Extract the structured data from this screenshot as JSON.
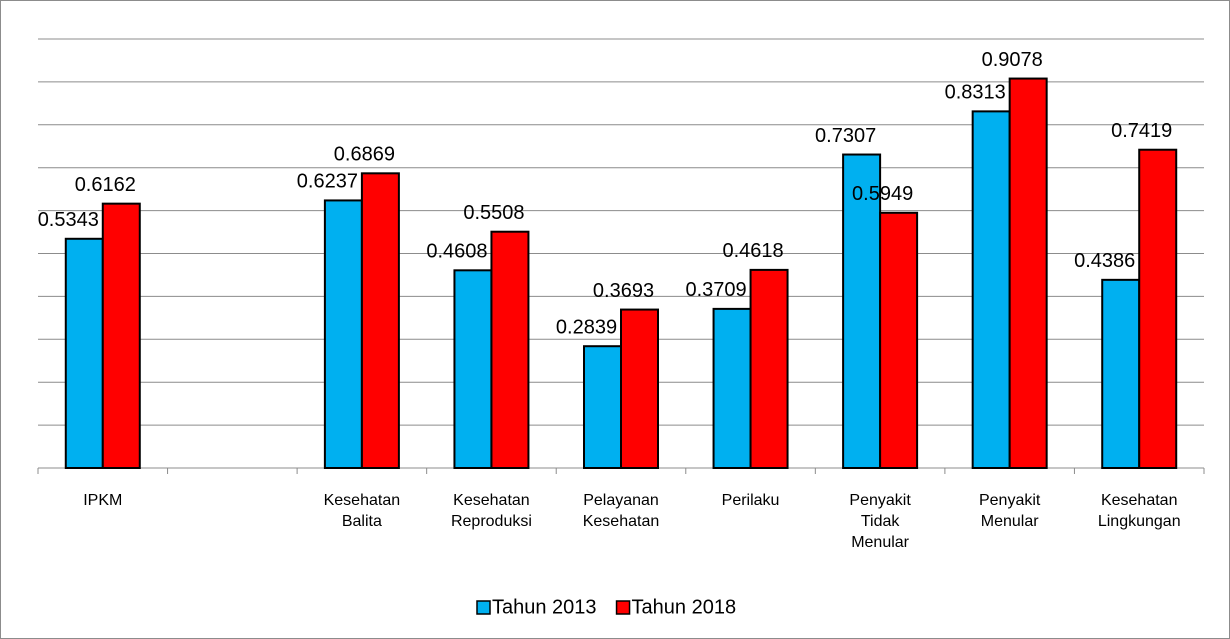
{
  "chart_data": {
    "type": "bar",
    "categories": [
      "IPKM",
      null,
      "Kesehatan Balita",
      "Kesehatan Reproduksi",
      "Pelayanan Kesehatan",
      "Perilaku",
      "Penyakit Tidak Menular",
      "Penyakit Menular",
      "Kesehatan Lingkungan"
    ],
    "series": [
      {
        "name": "Tahun 2013",
        "color": "#00b0f0",
        "values": [
          0.5343,
          null,
          0.6237,
          0.4608,
          0.2839,
          0.3709,
          0.7307,
          0.8313,
          0.4386
        ]
      },
      {
        "name": "Tahun 2018",
        "color": "#ff0000",
        "values": [
          0.6162,
          null,
          0.6869,
          0.5508,
          0.3693,
          0.4618,
          0.5949,
          0.9078,
          0.7419
        ]
      }
    ],
    "ylim": [
      0,
      1
    ],
    "yticks": [
      0,
      0.1,
      0.2,
      0.3,
      0.4,
      0.5,
      0.6,
      0.7,
      0.8,
      0.9,
      1
    ],
    "grid": true,
    "legend": "bottom"
  }
}
